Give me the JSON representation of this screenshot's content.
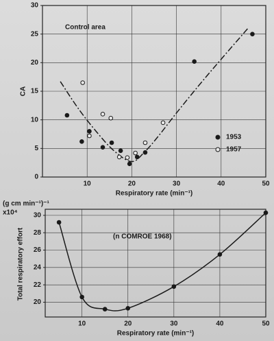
{
  "chart_data": [
    {
      "type": "scatter",
      "annotation": "Control area",
      "ylabel": "CA",
      "xlabel": "Respiratory rate (min⁻¹)",
      "xlim": [
        0,
        50
      ],
      "xticks": [
        10,
        20,
        30,
        40,
        50
      ],
      "ylim": [
        0,
        30
      ],
      "yticks": [
        0,
        5,
        10,
        15,
        20,
        25,
        30
      ],
      "grid": true,
      "legend": "right",
      "series": [
        {
          "name": "1953",
          "marker": "filled",
          "color": "#1a1a1a",
          "x": [
            5.5,
            8.8,
            10.5,
            13.5,
            15.5,
            17.5,
            19.5,
            21.2,
            23,
            34,
            47
          ],
          "values": [
            10.8,
            6.2,
            8,
            5.2,
            6,
            4.6,
            2.3,
            3.5,
            4.3,
            20.2,
            25
          ]
        },
        {
          "name": "1957",
          "marker": "open",
          "color": "#1a1a1a",
          "x": [
            9,
            10.5,
            13.5,
            15.3,
            17.2,
            19,
            20.8,
            23,
            27
          ],
          "values": [
            16.5,
            7.2,
            11,
            10.3,
            3.5,
            3.4,
            4.2,
            6,
            9.5
          ]
        }
      ],
      "fit": {
        "x": [
          4,
          8,
          12,
          16,
          20,
          23,
          26,
          30,
          35,
          40,
          46
        ],
        "y": [
          16.7,
          12,
          8,
          4.6,
          2.7,
          4.5,
          7.2,
          11.2,
          16,
          20.6,
          26
        ]
      }
    },
    {
      "type": "line",
      "annotation": "(n COMROE 1968)",
      "ylabel": "Total respiratory effort",
      "unit_label": "(g cm min⁻¹)⁻¹",
      "unit_scale": "x10⁴",
      "xlabel": "Respiratory rate (min⁻¹)",
      "xlim": [
        2,
        50
      ],
      "xticks": [
        10,
        20,
        30,
        40,
        50
      ],
      "ylim": [
        18.3,
        30.7
      ],
      "yticks": [
        20,
        22,
        24,
        26,
        28,
        30
      ],
      "grid": true,
      "series": [
        {
          "color": "#1a1a1a",
          "x": [
            5,
            10,
            15,
            20,
            30,
            40,
            50
          ],
          "values": [
            29.2,
            20.6,
            19.2,
            19.3,
            21.8,
            25.5,
            30.3
          ]
        }
      ]
    }
  ]
}
